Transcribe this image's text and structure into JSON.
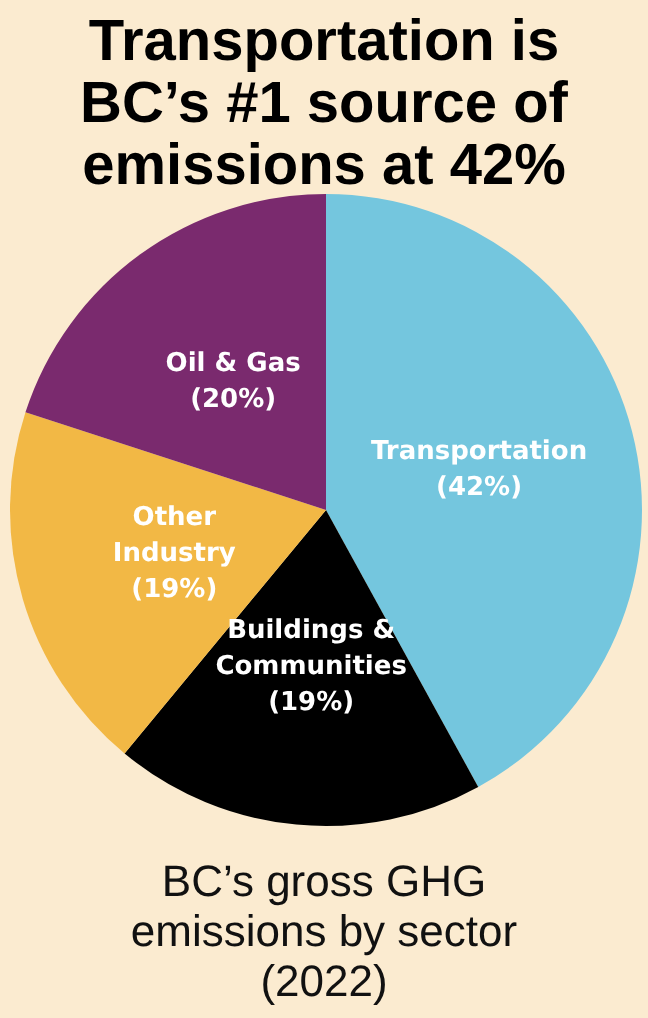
{
  "chart_data": {
    "type": "pie",
    "title": "Transportation is BC’s #1 source of emissions at 42%",
    "subtitle": "BC’s gross GHG emissions by sector (2022)",
    "categories": [
      "Transportation",
      "Buildings & Communities",
      "Other Industry",
      "Oil & Gas"
    ],
    "values": [
      42,
      19,
      19,
      20
    ],
    "value_labels": [
      "(42%)",
      "(19%)",
      "(19%)",
      "(20%)"
    ],
    "colors": [
      "#74c6de",
      "#000000",
      "#f2b845",
      "#7a2a6e"
    ],
    "legend": false
  }
}
